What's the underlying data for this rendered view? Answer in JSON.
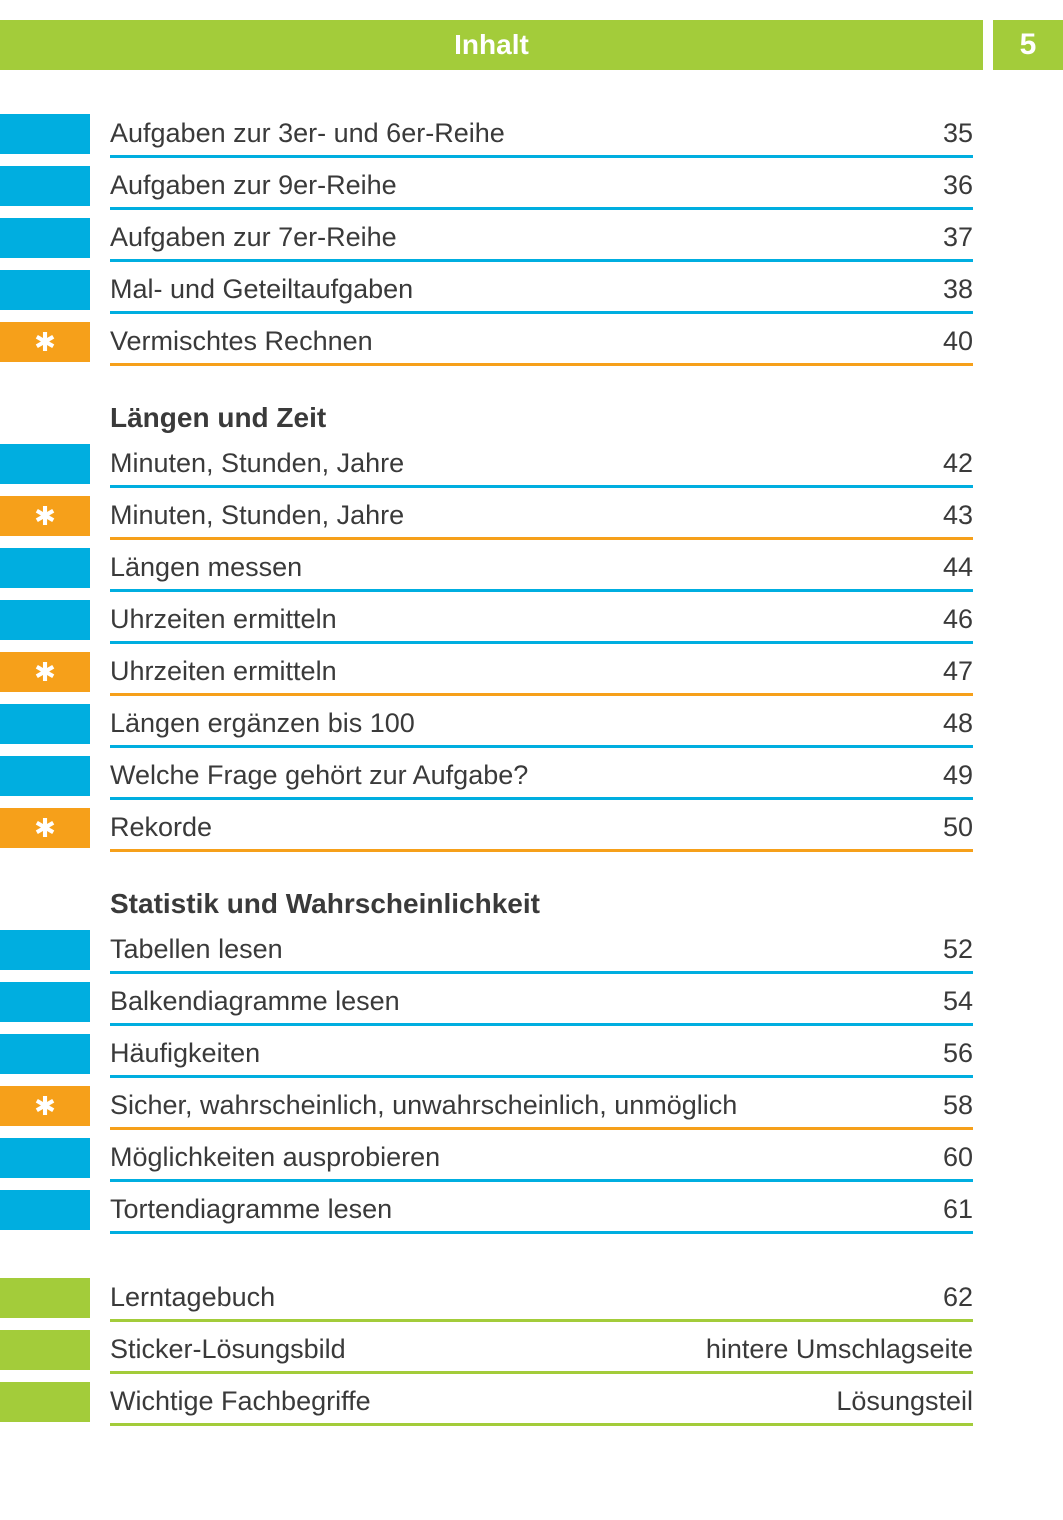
{
  "header": {
    "title": "Inhalt",
    "page_number": "5",
    "header_bg": "#a3cc3a",
    "header_text_color": "#ffffff"
  },
  "colors": {
    "blue": "#00aee0",
    "orange": "#f6a01a",
    "green": "#a3cc3a",
    "text": "#3a3a3a",
    "page_bg": "#ffffff"
  },
  "typography": {
    "body_fontsize_pt": 20,
    "heading_fontsize_pt": 21,
    "heading_weight": "bold"
  },
  "sections": [
    {
      "heading": null,
      "items": [
        {
          "label": "Aufgaben zur 3er- und 6er-Reihe",
          "page": "35",
          "tab_color": "blue",
          "star": false
        },
        {
          "label": "Aufgaben zur 9er-Reihe",
          "page": "36",
          "tab_color": "blue",
          "star": false
        },
        {
          "label": "Aufgaben zur 7er-Reihe",
          "page": "37",
          "tab_color": "blue",
          "star": false
        },
        {
          "label": "Mal- und Geteiltaufgaben",
          "page": "38",
          "tab_color": "blue",
          "star": false
        },
        {
          "label": "Vermischtes Rechnen",
          "page": "40",
          "tab_color": "orange",
          "star": true
        }
      ]
    },
    {
      "heading": "Längen und Zeit",
      "items": [
        {
          "label": "Minuten, Stunden, Jahre",
          "page": "42",
          "tab_color": "blue",
          "star": false
        },
        {
          "label": "Minuten, Stunden, Jahre",
          "page": "43",
          "tab_color": "orange",
          "star": true
        },
        {
          "label": "Längen messen",
          "page": "44",
          "tab_color": "blue",
          "star": false
        },
        {
          "label": "Uhrzeiten ermitteln",
          "page": "46",
          "tab_color": "blue",
          "star": false
        },
        {
          "label": "Uhrzeiten ermitteln",
          "page": "47",
          "tab_color": "orange",
          "star": true
        },
        {
          "label": "Längen ergänzen bis 100",
          "page": "48",
          "tab_color": "blue",
          "star": false
        },
        {
          "label": "Welche Frage gehört zur Aufgabe?",
          "page": "49",
          "tab_color": "blue",
          "star": false
        },
        {
          "label": "Rekorde",
          "page": "50",
          "tab_color": "orange",
          "star": true
        }
      ]
    },
    {
      "heading": "Statistik und Wahrscheinlichkeit",
      "items": [
        {
          "label": "Tabellen lesen",
          "page": "52",
          "tab_color": "blue",
          "star": false
        },
        {
          "label": "Balkendiagramme lesen",
          "page": "54",
          "tab_color": "blue",
          "star": false
        },
        {
          "label": "Häufigkeiten",
          "page": "56",
          "tab_color": "blue",
          "star": false
        },
        {
          "label": "Sicher, wahrscheinlich, unwahrscheinlich, unmöglich",
          "page": "58",
          "tab_color": "orange",
          "star": true
        },
        {
          "label": "Möglichkeiten ausprobieren",
          "page": "60",
          "tab_color": "blue",
          "star": false
        },
        {
          "label": "Tortendiagramme lesen",
          "page": "61",
          "tab_color": "blue",
          "star": false
        }
      ]
    },
    {
      "heading": null,
      "extra_top_gap": true,
      "items": [
        {
          "label": "Lerntagebuch",
          "page": "62",
          "tab_color": "green",
          "star": false
        },
        {
          "label": "Sticker-Lösungsbild",
          "page": "hintere Umschlagseite",
          "tab_color": "green",
          "star": false
        },
        {
          "label": "Wichtige Fachbegriffe",
          "page": "Lösungsteil",
          "tab_color": "green",
          "star": false
        }
      ]
    }
  ]
}
